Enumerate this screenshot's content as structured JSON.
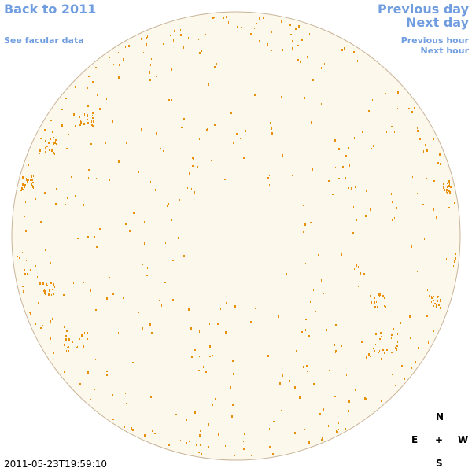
{
  "navigation": {
    "back": "Back to 2011",
    "facular": "See facular data",
    "previous_day": "Previous day",
    "next_day": "Next day",
    "previous_hour": "Previous hour",
    "next_hour": "Next hour"
  },
  "timestamp": "2011-05-23T19:59:10",
  "compass": {
    "north": "N",
    "east": "E",
    "center": "+",
    "west": "W",
    "south": "S"
  }
}
